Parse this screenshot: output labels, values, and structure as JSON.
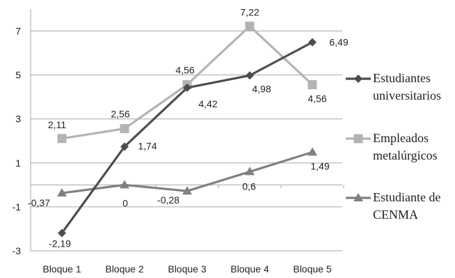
{
  "chart_data": {
    "type": "line",
    "categories": [
      "Bloque 1",
      "Bloque 2",
      "Bloque 3",
      "Bloque 4",
      "Bloque 5"
    ],
    "ylim": [
      -3,
      8
    ],
    "yticks": [
      -3,
      -1,
      1,
      3,
      5,
      7
    ],
    "ytick_labels": [
      "-3",
      "-1",
      "1",
      "3",
      "5",
      "7"
    ],
    "grid": true,
    "legend_position": "right",
    "series": [
      {
        "name": "Estudiantes universitarios",
        "legend_lines": [
          "Estudiantes",
          "universitarios"
        ],
        "values": [
          -2.19,
          1.74,
          4.42,
          4.98,
          6.49
        ],
        "labels": [
          "-2,19",
          "1,74",
          "4,42",
          "4,98",
          "6,49"
        ],
        "color": "#4d4d4d",
        "marker": "diamond"
      },
      {
        "name": "Empleados metalúrgicos",
        "legend_lines": [
          "Empleados",
          "metalúrgicos"
        ],
        "values": [
          2.11,
          2.56,
          4.56,
          7.22,
          4.56
        ],
        "labels": [
          "2,11",
          "2,56",
          "4,56",
          "7,22",
          "4,56"
        ],
        "color": "#b3b3b3",
        "marker": "square"
      },
      {
        "name": "Estudiante de CENMA",
        "legend_lines": [
          "Estudiante de",
          "CENMA"
        ],
        "values": [
          -0.37,
          0,
          -0.28,
          0.6,
          1.49
        ],
        "labels": [
          "-0,37",
          "0",
          "-0,28",
          "0,6",
          "1,49"
        ],
        "color": "#808080",
        "marker": "triangle"
      }
    ]
  }
}
